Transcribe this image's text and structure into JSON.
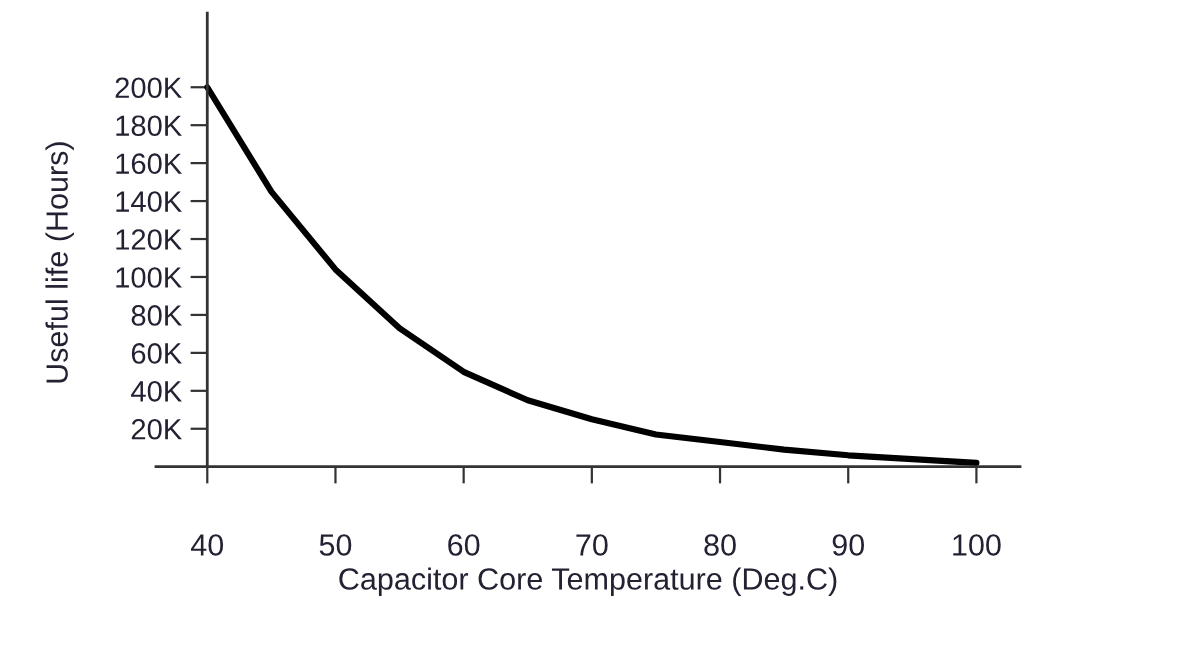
{
  "chart_data": {
    "type": "line",
    "xlabel": "Capacitor Core Temperature (Deg.C)",
    "ylabel": "Useful life (Hours)",
    "x": [
      40,
      45,
      50,
      55,
      60,
      65,
      70,
      75,
      80,
      85,
      90,
      95,
      100
    ],
    "series": [
      {
        "color": "#000000",
        "values": [
          200000,
          145000,
          104000,
          73000,
          50000,
          35000,
          25000,
          17000,
          13000,
          9000,
          6000,
          4000,
          2000
        ]
      }
    ],
    "xlim": [
      36,
      103.4
    ],
    "ylim": [
      0,
      239000
    ],
    "xticks": [
      40,
      50,
      60,
      70,
      80,
      90,
      100
    ],
    "yticks": [
      {
        "value": 20000,
        "label": "20K"
      },
      {
        "value": 40000,
        "label": "40K"
      },
      {
        "value": 60000,
        "label": "60K"
      },
      {
        "value": 80000,
        "label": "80K"
      },
      {
        "value": 100000,
        "label": "100K"
      },
      {
        "value": 120000,
        "label": "120K"
      },
      {
        "value": 140000,
        "label": "140K"
      },
      {
        "value": 160000,
        "label": "160K"
      },
      {
        "value": 180000,
        "label": "180K"
      },
      {
        "value": 200000,
        "label": "200K"
      }
    ],
    "grid": false,
    "legend": false,
    "marker": "none",
    "line_style": "solid"
  }
}
